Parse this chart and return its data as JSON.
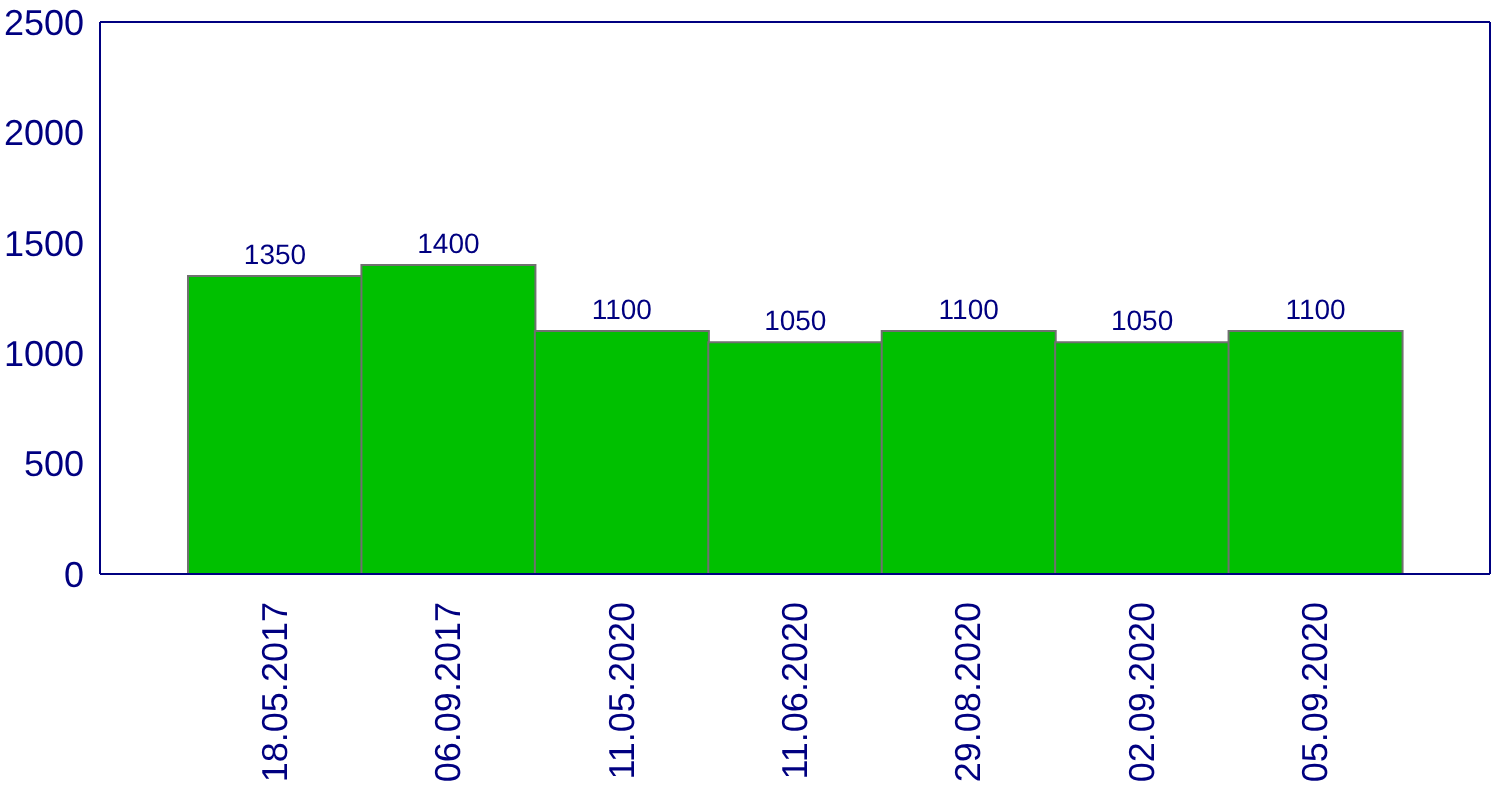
{
  "chart_data": {
    "type": "bar",
    "categories": [
      "18.05.2017",
      "06.09.2017",
      "11.05.2020",
      "11.06.2020",
      "29.08.2020",
      "02.09.2020",
      "05.09.2020"
    ],
    "values": [
      1350,
      1400,
      1100,
      1050,
      1100,
      1050,
      1100
    ],
    "color": "#00c000",
    "ylim": [
      0,
      2500
    ],
    "yticks": [
      0,
      500,
      1000,
      1500,
      2000,
      2500
    ],
    "grid": false,
    "data_labels": true,
    "legend": false
  }
}
